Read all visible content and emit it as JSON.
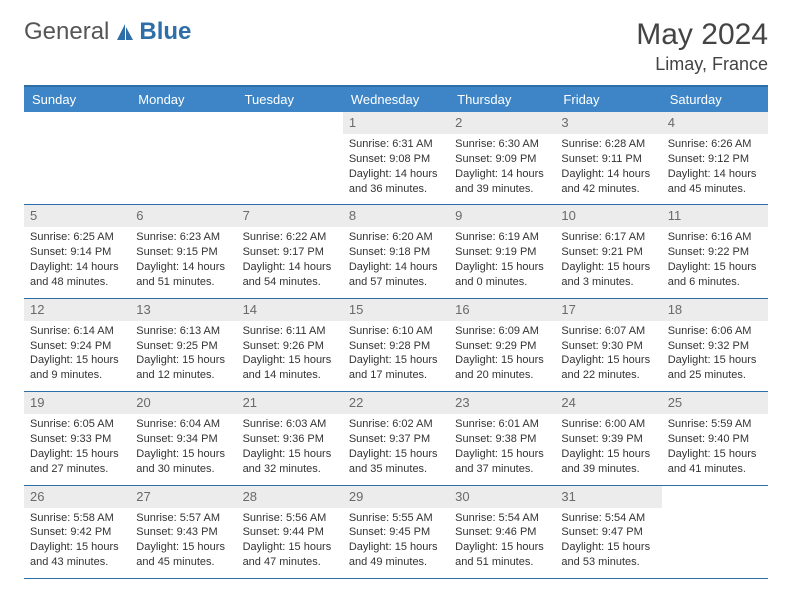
{
  "logo": {
    "text1": "General",
    "text2": "Blue"
  },
  "title": "May 2024",
  "location": "Limay, France",
  "colors": {
    "header_bar": "#3d85c6",
    "accent_line": "#2f6fa7",
    "daynum_bg": "#ececec",
    "text": "#333333"
  },
  "weekdays": [
    "Sunday",
    "Monday",
    "Tuesday",
    "Wednesday",
    "Thursday",
    "Friday",
    "Saturday"
  ],
  "layout": {
    "cols": 7,
    "rows": 5,
    "blank_leading": 3
  },
  "days": [
    {
      "n": 1,
      "sr": "6:31 AM",
      "ss": "9:08 PM",
      "dl": "14 hours and 36 minutes."
    },
    {
      "n": 2,
      "sr": "6:30 AM",
      "ss": "9:09 PM",
      "dl": "14 hours and 39 minutes."
    },
    {
      "n": 3,
      "sr": "6:28 AM",
      "ss": "9:11 PM",
      "dl": "14 hours and 42 minutes."
    },
    {
      "n": 4,
      "sr": "6:26 AM",
      "ss": "9:12 PM",
      "dl": "14 hours and 45 minutes."
    },
    {
      "n": 5,
      "sr": "6:25 AM",
      "ss": "9:14 PM",
      "dl": "14 hours and 48 minutes."
    },
    {
      "n": 6,
      "sr": "6:23 AM",
      "ss": "9:15 PM",
      "dl": "14 hours and 51 minutes."
    },
    {
      "n": 7,
      "sr": "6:22 AM",
      "ss": "9:17 PM",
      "dl": "14 hours and 54 minutes."
    },
    {
      "n": 8,
      "sr": "6:20 AM",
      "ss": "9:18 PM",
      "dl": "14 hours and 57 minutes."
    },
    {
      "n": 9,
      "sr": "6:19 AM",
      "ss": "9:19 PM",
      "dl": "15 hours and 0 minutes."
    },
    {
      "n": 10,
      "sr": "6:17 AM",
      "ss": "9:21 PM",
      "dl": "15 hours and 3 minutes."
    },
    {
      "n": 11,
      "sr": "6:16 AM",
      "ss": "9:22 PM",
      "dl": "15 hours and 6 minutes."
    },
    {
      "n": 12,
      "sr": "6:14 AM",
      "ss": "9:24 PM",
      "dl": "15 hours and 9 minutes."
    },
    {
      "n": 13,
      "sr": "6:13 AM",
      "ss": "9:25 PM",
      "dl": "15 hours and 12 minutes."
    },
    {
      "n": 14,
      "sr": "6:11 AM",
      "ss": "9:26 PM",
      "dl": "15 hours and 14 minutes."
    },
    {
      "n": 15,
      "sr": "6:10 AM",
      "ss": "9:28 PM",
      "dl": "15 hours and 17 minutes."
    },
    {
      "n": 16,
      "sr": "6:09 AM",
      "ss": "9:29 PM",
      "dl": "15 hours and 20 minutes."
    },
    {
      "n": 17,
      "sr": "6:07 AM",
      "ss": "9:30 PM",
      "dl": "15 hours and 22 minutes."
    },
    {
      "n": 18,
      "sr": "6:06 AM",
      "ss": "9:32 PM",
      "dl": "15 hours and 25 minutes."
    },
    {
      "n": 19,
      "sr": "6:05 AM",
      "ss": "9:33 PM",
      "dl": "15 hours and 27 minutes."
    },
    {
      "n": 20,
      "sr": "6:04 AM",
      "ss": "9:34 PM",
      "dl": "15 hours and 30 minutes."
    },
    {
      "n": 21,
      "sr": "6:03 AM",
      "ss": "9:36 PM",
      "dl": "15 hours and 32 minutes."
    },
    {
      "n": 22,
      "sr": "6:02 AM",
      "ss": "9:37 PM",
      "dl": "15 hours and 35 minutes."
    },
    {
      "n": 23,
      "sr": "6:01 AM",
      "ss": "9:38 PM",
      "dl": "15 hours and 37 minutes."
    },
    {
      "n": 24,
      "sr": "6:00 AM",
      "ss": "9:39 PM",
      "dl": "15 hours and 39 minutes."
    },
    {
      "n": 25,
      "sr": "5:59 AM",
      "ss": "9:40 PM",
      "dl": "15 hours and 41 minutes."
    },
    {
      "n": 26,
      "sr": "5:58 AM",
      "ss": "9:42 PM",
      "dl": "15 hours and 43 minutes."
    },
    {
      "n": 27,
      "sr": "5:57 AM",
      "ss": "9:43 PM",
      "dl": "15 hours and 45 minutes."
    },
    {
      "n": 28,
      "sr": "5:56 AM",
      "ss": "9:44 PM",
      "dl": "15 hours and 47 minutes."
    },
    {
      "n": 29,
      "sr": "5:55 AM",
      "ss": "9:45 PM",
      "dl": "15 hours and 49 minutes."
    },
    {
      "n": 30,
      "sr": "5:54 AM",
      "ss": "9:46 PM",
      "dl": "15 hours and 51 minutes."
    },
    {
      "n": 31,
      "sr": "5:54 AM",
      "ss": "9:47 PM",
      "dl": "15 hours and 53 minutes."
    }
  ],
  "labels": {
    "sunrise": "Sunrise:",
    "sunset": "Sunset:",
    "daylight": "Daylight:"
  }
}
